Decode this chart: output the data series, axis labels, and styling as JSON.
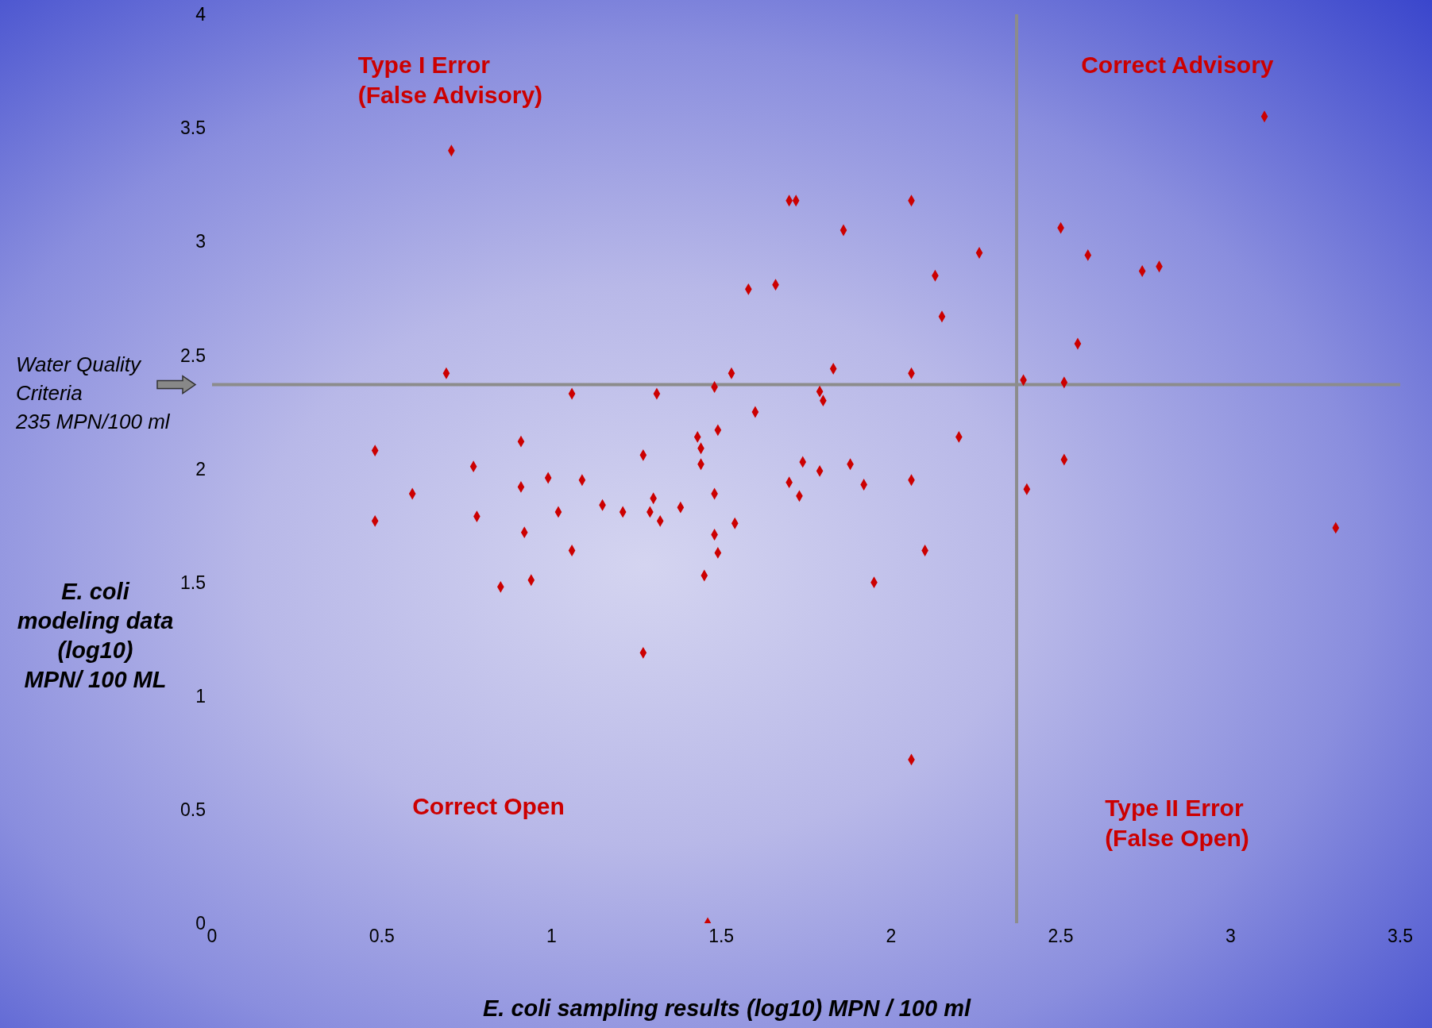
{
  "chart_data": {
    "type": "scatter",
    "xlabel": "E. coli sampling results (log10) MPN / 100 ml",
    "ylabel": "E. coli\nmodeling data\n(log10)\nMPN/ 100 ML",
    "marker": "diamond",
    "grid": false,
    "legend": false,
    "xlim": [
      0,
      3.5
    ],
    "xticks": [
      0,
      0.5,
      1,
      1.5,
      2,
      2.5,
      3,
      3.5
    ],
    "ylim": [
      0,
      4
    ],
    "yticks": [
      0,
      0.5,
      1,
      1.5,
      2,
      2.5,
      3,
      3.5,
      4
    ],
    "ref_lines": [
      {
        "axis": "x",
        "value": 2.37,
        "color": "#8c8c8c"
      },
      {
        "axis": "y",
        "value": 2.37,
        "label": "Water Quality\nCriteria\n235 MPN/100 ml",
        "color": "#8c8c8c"
      }
    ],
    "annotations": [
      "Type I Error\n(False Advisory)",
      "Correct Advisory",
      "Correct Open",
      "Type II Error\n(False Open)"
    ],
    "series": [
      {
        "color": "#cc0000",
        "x": [
          0.705,
          3.1,
          0.69,
          0.48,
          0.48,
          0.59,
          0.77,
          0.78,
          0.91,
          0.91,
          0.92,
          0.85,
          0.94,
          0.99,
          1.02,
          1.06,
          1.06,
          1.09,
          1.15,
          1.21,
          1.27,
          1.27,
          1.29,
          1.3,
          1.32,
          1.31,
          1.38,
          1.43,
          1.44,
          1.44,
          1.45,
          1.46,
          1.48,
          1.49,
          1.48,
          1.48,
          1.49,
          1.53,
          1.54,
          1.58,
          1.6,
          1.66,
          1.7,
          1.72,
          1.7,
          1.73,
          1.74,
          1.79,
          1.8,
          1.79,
          1.83,
          1.86,
          1.88,
          1.92,
          1.95,
          2.06,
          2.06,
          2.06,
          2.06,
          2.1,
          2.13,
          2.15,
          2.2,
          2.26,
          2.39,
          2.4,
          2.5,
          2.51,
          2.51,
          2.55,
          2.58,
          2.74,
          2.79,
          3.31
        ],
        "values": [
          3.4,
          3.55,
          2.42,
          2.08,
          1.77,
          1.89,
          2.01,
          1.79,
          2.12,
          1.92,
          1.72,
          1.48,
          1.51,
          1.96,
          1.81,
          2.33,
          1.64,
          1.95,
          1.84,
          1.81,
          2.06,
          1.19,
          1.81,
          1.87,
          1.77,
          2.33,
          1.83,
          2.14,
          2.09,
          2.02,
          1.53,
          0,
          2.36,
          2.17,
          1.89,
          1.71,
          1.63,
          2.42,
          1.76,
          2.79,
          2.25,
          2.81,
          3.18,
          3.18,
          1.94,
          1.88,
          2.03,
          2.34,
          2.3,
          1.99,
          2.44,
          3.05,
          2.02,
          1.93,
          1.5,
          3.18,
          2.42,
          1.95,
          0.72,
          1.64,
          2.85,
          2.67,
          2.14,
          2.95,
          2.39,
          1.91,
          3.06,
          2.38,
          2.04,
          2.55,
          2.94,
          2.87,
          2.89,
          1.74
        ]
      }
    ]
  }
}
